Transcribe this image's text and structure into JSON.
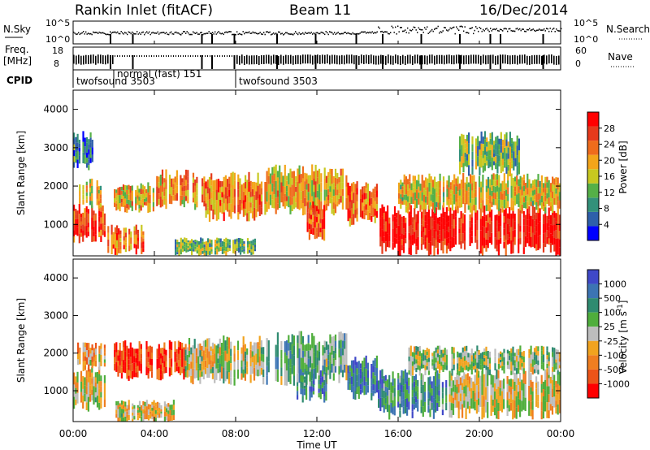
{
  "header": {
    "station": "Rankin Inlet (fitACF)",
    "beam": "Beam 11",
    "date": "16/Dec/2014"
  },
  "strip_labels": {
    "nsky": "N.Sky",
    "nsearch": "N.Search",
    "freq_line1": "Freq.",
    "freq_line2": "[MHz]",
    "nave": "Nave",
    "cpid": "CPID",
    "noise_ticks_left": [
      "10^5",
      "10^0"
    ],
    "noise_ticks_right": [
      "10^5",
      "10^0"
    ],
    "freq_ticks_left": [
      "18",
      "8"
    ],
    "nave_ticks_right": [
      "60",
      "0"
    ]
  },
  "cpid_modes": [
    {
      "label": "twofsound 3503",
      "start_h": 0,
      "end_h": 2.0
    },
    {
      "label": "normal (fast) 151",
      "start_h": 2.0,
      "end_h": 8.0
    },
    {
      "label": "twofsound 3503",
      "start_h": 8.0,
      "end_h": 24.0
    }
  ],
  "colors": {
    "power_scale": [
      "#0000ff",
      "#2e5faa",
      "#33917a",
      "#55b047",
      "#c8c820",
      "#f3a51a",
      "#ef6c1c",
      "#e63a1c",
      "#ff0000"
    ],
    "velocity_scale": [
      "#3f48c8",
      "#3c74b3",
      "#2f8b70",
      "#4fae3c",
      "#bdbdbd",
      "#f1a31f",
      "#ef7e20",
      "#ec5418",
      "#ff0000"
    ]
  },
  "chart_data": [
    {
      "type": "heatmap",
      "title": "Power",
      "xlabel": "Time UT",
      "ylabel": "Slant Range [km]",
      "colorbar_label": "Power [dB]",
      "x_ticks": [
        "00:00",
        "04:00",
        "08:00",
        "12:00",
        "16:00",
        "20:00",
        "00:00"
      ],
      "y_ticks": [
        "1000",
        "2000",
        "3000",
        "4000"
      ],
      "colorbar_ticks": [
        "4",
        "8",
        "12",
        "16",
        "20",
        "24",
        "28"
      ],
      "xlim_hours": [
        0,
        24
      ],
      "ylim_km": [
        180,
        4500
      ],
      "clim_db": [
        0,
        30
      ],
      "regions": [
        {
          "t0": 0.0,
          "t1": 1.6,
          "r0": 600,
          "r1": 1400,
          "level": 0.85
        },
        {
          "t0": 0.2,
          "t1": 1.4,
          "r0": 1500,
          "r1": 2100,
          "level": 0.55
        },
        {
          "t0": 0.0,
          "t1": 1.0,
          "r0": 2500,
          "r1": 3300,
          "level": 0.25
        },
        {
          "t0": 1.6,
          "t1": 3.5,
          "r0": 300,
          "r1": 900,
          "level": 0.7
        },
        {
          "t0": 2.0,
          "t1": 4.0,
          "r0": 1400,
          "r1": 2000,
          "level": 0.6
        },
        {
          "t0": 4.0,
          "t1": 6.5,
          "r0": 1500,
          "r1": 2300,
          "level": 0.65
        },
        {
          "t0": 6.5,
          "t1": 9.5,
          "r0": 1200,
          "r1": 2200,
          "level": 0.7
        },
        {
          "t0": 5.0,
          "t1": 9.0,
          "r0": 250,
          "r1": 600,
          "level": 0.4
        },
        {
          "t0": 9.5,
          "t1": 13.5,
          "r0": 1400,
          "r1": 2400,
          "level": 0.6
        },
        {
          "t0": 11.5,
          "t1": 12.5,
          "r0": 700,
          "r1": 1500,
          "level": 0.8
        },
        {
          "t0": 13.5,
          "t1": 15.0,
          "r0": 1100,
          "r1": 2000,
          "level": 0.75
        },
        {
          "t0": 15.0,
          "t1": 24.0,
          "r0": 350,
          "r1": 1350,
          "level": 0.95
        },
        {
          "t0": 16.0,
          "t1": 24.0,
          "r0": 1400,
          "r1": 2200,
          "level": 0.55
        },
        {
          "t0": 19.0,
          "t1": 22.0,
          "r0": 2400,
          "r1": 3300,
          "level": 0.4
        }
      ]
    },
    {
      "type": "heatmap",
      "title": "Velocity",
      "xlabel": "Time UT",
      "ylabel": "Slant Range [km]",
      "colorbar_label": "Velocity [m s^-1]",
      "x_ticks": [
        "00:00",
        "04:00",
        "08:00",
        "12:00",
        "16:00",
        "20:00",
        "00:00"
      ],
      "y_ticks": [
        "1000",
        "2000",
        "3000",
        "4000"
      ],
      "colorbar_ticks": [
        "1000",
        "500",
        "100",
        "25",
        "-25",
        "-100",
        "-500",
        "-1000"
      ],
      "xlim_hours": [
        0,
        24
      ],
      "ylim_km": [
        180,
        4500
      ],
      "clim_ms": [
        -1200,
        1200
      ],
      "regions": [
        {
          "t0": 0.0,
          "t1": 1.6,
          "r0": 600,
          "r1": 1500,
          "level": 0.55
        },
        {
          "t0": 0.2,
          "t1": 1.6,
          "r0": 1600,
          "r1": 2200,
          "level": 0.65
        },
        {
          "t0": 2.0,
          "t1": 5.5,
          "r0": 1400,
          "r1": 2200,
          "level": 0.9
        },
        {
          "t0": 2.0,
          "t1": 5.0,
          "r0": 200,
          "r1": 700,
          "level": 0.55
        },
        {
          "t0": 5.5,
          "t1": 9.5,
          "r0": 1300,
          "r1": 2300,
          "level": 0.5
        },
        {
          "t0": 9.5,
          "t1": 13.5,
          "r0": 1300,
          "r1": 2400,
          "level": 0.35
        },
        {
          "t0": 11.0,
          "t1": 12.5,
          "r0": 800,
          "r1": 1500,
          "level": 0.25
        },
        {
          "t0": 13.5,
          "t1": 15.0,
          "r0": 900,
          "r1": 1800,
          "level": 0.2
        },
        {
          "t0": 15.0,
          "t1": 18.5,
          "r0": 400,
          "r1": 1400,
          "level": 0.25
        },
        {
          "t0": 18.5,
          "t1": 24.0,
          "r0": 400,
          "r1": 1400,
          "level": 0.55
        },
        {
          "t0": 16.5,
          "t1": 24.0,
          "r0": 1500,
          "r1": 2100,
          "level": 0.45
        }
      ]
    }
  ]
}
